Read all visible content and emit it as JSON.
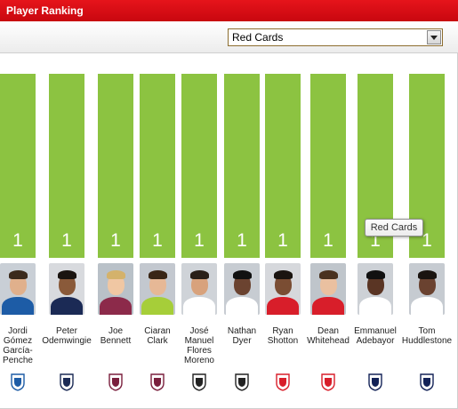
{
  "header": {
    "title": "Player Ranking"
  },
  "filter": {
    "selected": "Red Cards"
  },
  "tooltip": {
    "text": "Red Cards"
  },
  "colors": {
    "header": "#d50c13",
    "bar": "#8cc341",
    "bar_value": "#ffffff"
  },
  "chart_data": {
    "type": "bar",
    "metric": "Red Cards",
    "categories": [
      "Jordi Gómez García-Penche",
      "Peter Odemwingie",
      "Joe Bennett",
      "Ciaran Clark",
      "José Manuel Flores Moreno",
      "Nathan Dyer",
      "Ryan Shotton",
      "Dean Whitehead",
      "Emmanuel Adebayor",
      "Tom Huddlestone"
    ],
    "values": [
      1,
      1,
      1,
      1,
      1,
      1,
      1,
      1,
      1,
      1
    ]
  },
  "players": [
    {
      "name": "Jordi Gómez García-Penche",
      "name_lines": [
        "Jordi",
        "Gómez",
        "García-",
        "Penche"
      ],
      "value": "1",
      "club_icon": "wigan-crest-icon",
      "club_color": "#1d5ca6"
    },
    {
      "name": "Peter Odemwingie",
      "name_lines": [
        "Peter",
        "Odemwingie"
      ],
      "value": "1",
      "club_icon": "west-brom-crest-icon",
      "club_color": "#1b2a55"
    },
    {
      "name": "Joe Bennett",
      "name_lines": [
        "Joe",
        "Bennett"
      ],
      "value": "1",
      "club_icon": "aston-villa-crest-icon",
      "club_color": "#7a1f3d"
    },
    {
      "name": "Ciaran Clark",
      "name_lines": [
        "Ciaran",
        "Clark"
      ],
      "value": "1",
      "club_icon": "aston-villa-crest-icon",
      "club_color": "#7a1f3d"
    },
    {
      "name": "José Manuel Flores Moreno",
      "name_lines": [
        "José",
        "Manuel",
        "Flores",
        "Moreno"
      ],
      "value": "1",
      "club_icon": "swansea-crest-icon",
      "club_color": "#222222"
    },
    {
      "name": "Nathan Dyer",
      "name_lines": [
        "Nathan",
        "Dyer"
      ],
      "value": "1",
      "club_icon": "swansea-crest-icon",
      "club_color": "#222222"
    },
    {
      "name": "Ryan Shotton",
      "name_lines": [
        "Ryan",
        "Shotton"
      ],
      "value": "1",
      "club_icon": "stoke-crest-icon",
      "club_color": "#d81e2a"
    },
    {
      "name": "Dean Whitehead",
      "name_lines": [
        "Dean",
        "Whitehead"
      ],
      "value": "1",
      "club_icon": "stoke-crest-icon",
      "club_color": "#d81e2a"
    },
    {
      "name": "Emmanuel Adebayor",
      "name_lines": [
        "Emmanuel",
        "Adebayor"
      ],
      "value": "1",
      "club_icon": "tottenham-crest-icon",
      "club_color": "#132257"
    },
    {
      "name": "Tom Huddlestone",
      "name_lines": [
        "Tom",
        "Huddlestone"
      ],
      "value": "1",
      "club_icon": "tottenham-crest-icon",
      "club_color": "#132257"
    }
  ]
}
